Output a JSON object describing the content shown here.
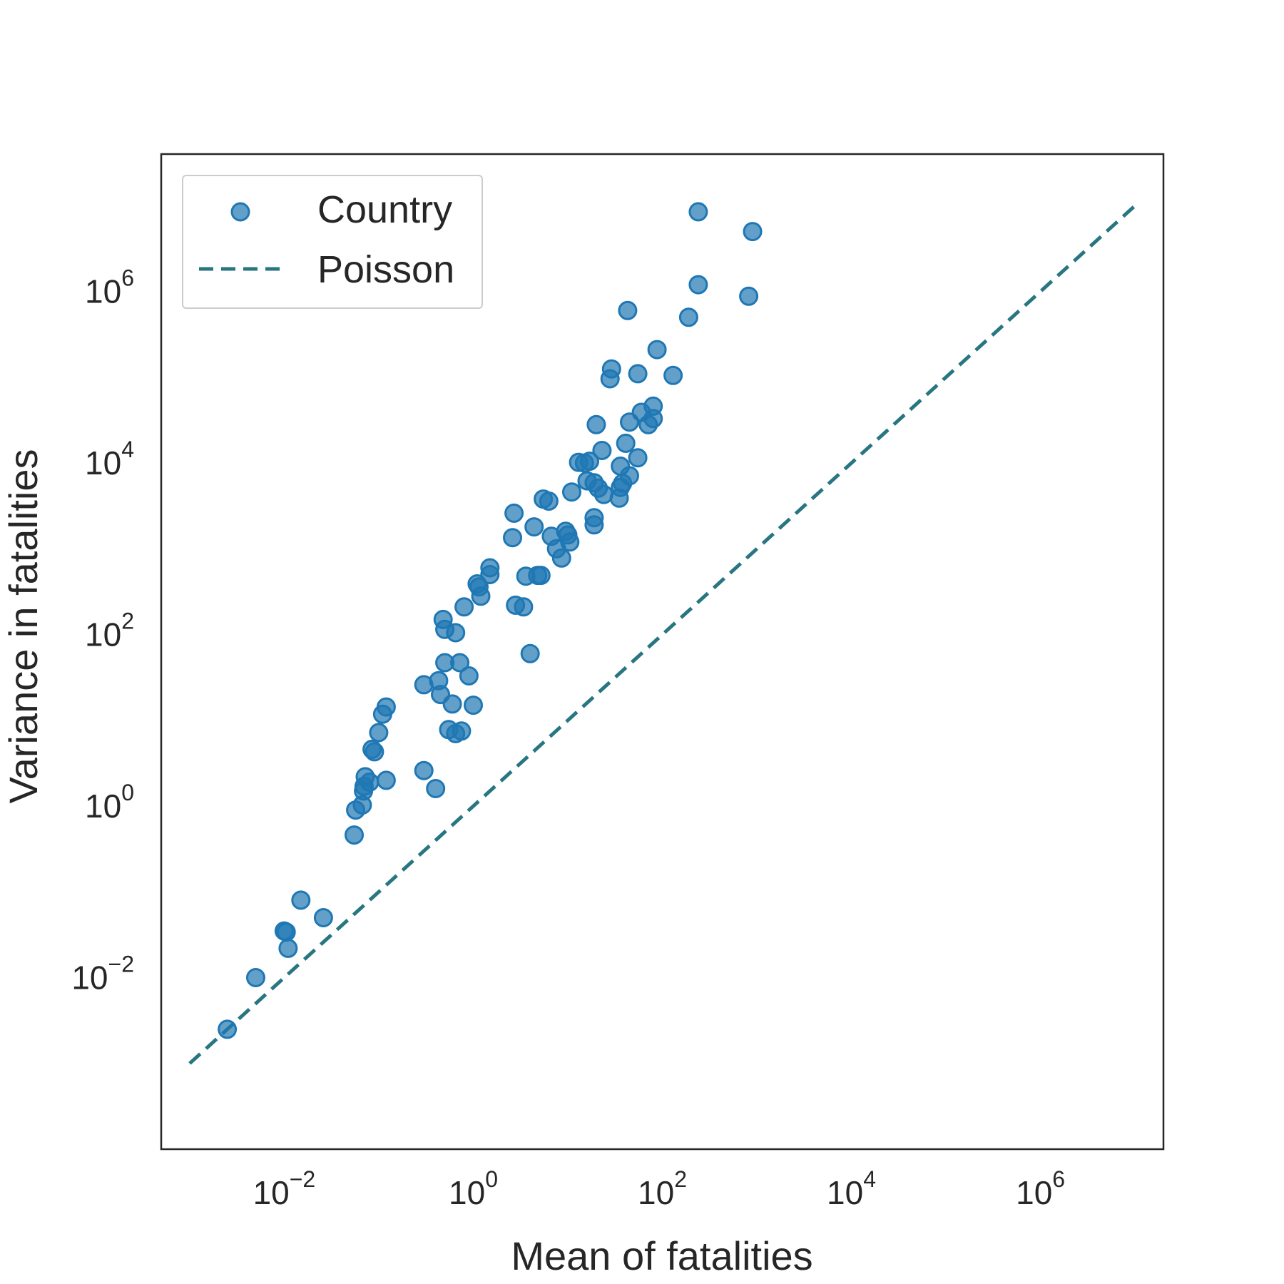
{
  "chart_data": {
    "type": "scatter",
    "xlabel": "Mean of fatalities",
    "ylabel": "Variance in fatalities",
    "xscale": "log",
    "yscale": "log",
    "xlim": [
      0.0005,
      20000000
    ],
    "ylim": [
      0.0001,
      40000000
    ],
    "xticks": [
      {
        "base": "10",
        "exp": "−2",
        "value": 0.01
      },
      {
        "base": "10",
        "exp": "0",
        "value": 1
      },
      {
        "base": "10",
        "exp": "2",
        "value": 100
      },
      {
        "base": "10",
        "exp": "4",
        "value": 10000
      },
      {
        "base": "10",
        "exp": "6",
        "value": 1000000
      }
    ],
    "yticks": [
      {
        "base": "10",
        "exp": "−2",
        "value": 0.01
      },
      {
        "base": "10",
        "exp": "0",
        "value": 1
      },
      {
        "base": "10",
        "exp": "2",
        "value": 100
      },
      {
        "base": "10",
        "exp": "4",
        "value": 10000
      },
      {
        "base": "10",
        "exp": "6",
        "value": 1000000
      }
    ],
    "grid": false,
    "legend_position": "top-left",
    "colors": {
      "scatter": "#1f77b4",
      "line": "#277681",
      "axes": "#262626"
    },
    "series": [
      {
        "name": "Country",
        "type": "scatter",
        "points": [
          [
            0.0025,
            0.0025
          ],
          [
            0.005,
            0.01
          ],
          [
            0.01,
            0.035
          ],
          [
            0.0105,
            0.034
          ],
          [
            0.011,
            0.022
          ],
          [
            0.015,
            0.08
          ],
          [
            0.026,
            0.05
          ],
          [
            0.055,
            0.46
          ],
          [
            0.057,
            0.9
          ],
          [
            0.067,
            1.03
          ],
          [
            0.069,
            1.5
          ],
          [
            0.07,
            1.7
          ],
          [
            0.072,
            2.2
          ],
          [
            0.08,
            1.9
          ],
          [
            0.085,
            4.6
          ],
          [
            0.09,
            4.3
          ],
          [
            0.1,
            7.2
          ],
          [
            0.11,
            11.8
          ],
          [
            0.12,
            14.3
          ],
          [
            0.12,
            2.0
          ],
          [
            0.3,
            2.6
          ],
          [
            0.3,
            26
          ],
          [
            0.4,
            1.6
          ],
          [
            0.43,
            29
          ],
          [
            0.45,
            20
          ],
          [
            0.48,
            150
          ],
          [
            0.5,
            115
          ],
          [
            0.5,
            47
          ],
          [
            0.55,
            7.8
          ],
          [
            0.6,
            15.5
          ],
          [
            0.65,
            105
          ],
          [
            0.65,
            7.0
          ],
          [
            0.72,
            47
          ],
          [
            0.75,
            7.5
          ],
          [
            0.8,
            210
          ],
          [
            0.9,
            33
          ],
          [
            1.0,
            15
          ],
          [
            1.1,
            390
          ],
          [
            1.15,
            360
          ],
          [
            1.2,
            280
          ],
          [
            1.5,
            500
          ],
          [
            1.5,
            600
          ],
          [
            2.6,
            1350
          ],
          [
            2.7,
            2600
          ],
          [
            2.8,
            220
          ],
          [
            3.4,
            210
          ],
          [
            3.6,
            480
          ],
          [
            4.0,
            60
          ],
          [
            4.4,
            1800
          ],
          [
            4.8,
            490
          ],
          [
            5.2,
            490
          ],
          [
            5.5,
            3800
          ],
          [
            6.3,
            3600
          ],
          [
            6.7,
            1400
          ],
          [
            7.6,
            1000
          ],
          [
            8.6,
            780
          ],
          [
            9.5,
            1600
          ],
          [
            10,
            1450
          ],
          [
            10.5,
            1200
          ],
          [
            11,
            4600
          ],
          [
            13,
            10200
          ],
          [
            15,
            10000
          ],
          [
            16,
            6200
          ],
          [
            17,
            10500
          ],
          [
            19,
            2300
          ],
          [
            19,
            1900
          ],
          [
            19,
            5900
          ],
          [
            20,
            28000
          ],
          [
            21,
            5100
          ],
          [
            23,
            14000
          ],
          [
            24,
            4300
          ],
          [
            28,
            96000
          ],
          [
            29,
            125000
          ],
          [
            35,
            3900
          ],
          [
            36,
            9200
          ],
          [
            36,
            5200
          ],
          [
            38,
            5800
          ],
          [
            41,
            17000
          ],
          [
            45,
            7100
          ],
          [
            43,
            600000
          ],
          [
            45,
            30000
          ],
          [
            55,
            11500
          ],
          [
            55,
            110000
          ],
          [
            60,
            39000
          ],
          [
            71,
            28000
          ],
          [
            80,
            33000
          ],
          [
            80,
            46000
          ],
          [
            88,
            210000
          ],
          [
            130,
            105000
          ],
          [
            190,
            500000
          ],
          [
            240,
            1200000
          ],
          [
            240,
            8500000
          ],
          [
            820,
            880000
          ],
          [
            900,
            5000000
          ]
        ]
      },
      {
        "name": "Poisson",
        "type": "line",
        "style": "dashed",
        "points": [
          [
            0.001,
            0.001
          ],
          [
            10000000,
            10000000
          ]
        ]
      }
    ]
  }
}
